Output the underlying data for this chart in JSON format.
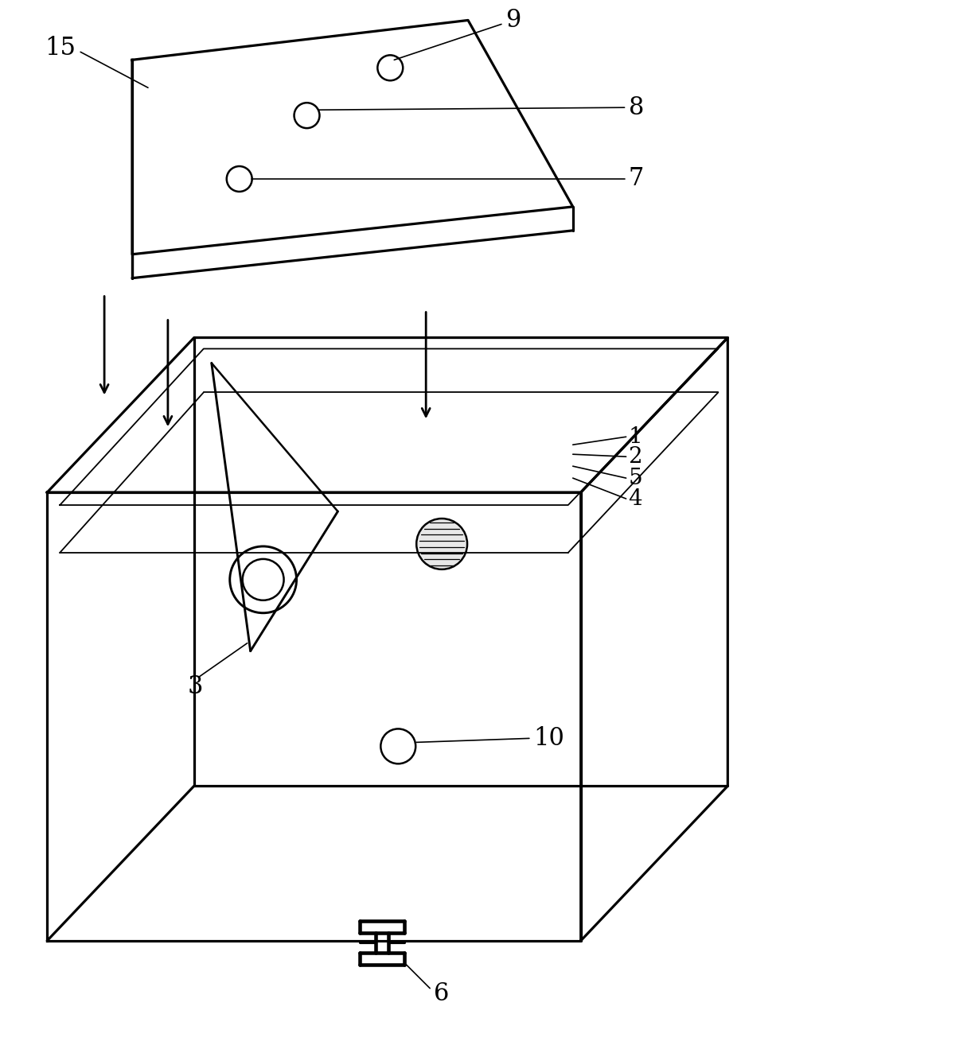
{
  "background_color": "#ffffff",
  "line_color": "#000000",
  "lw_main": 1.8,
  "lw_thin": 1.0,
  "fig_width": 12.25,
  "fig_height": 13.19,
  "dpi": 100
}
